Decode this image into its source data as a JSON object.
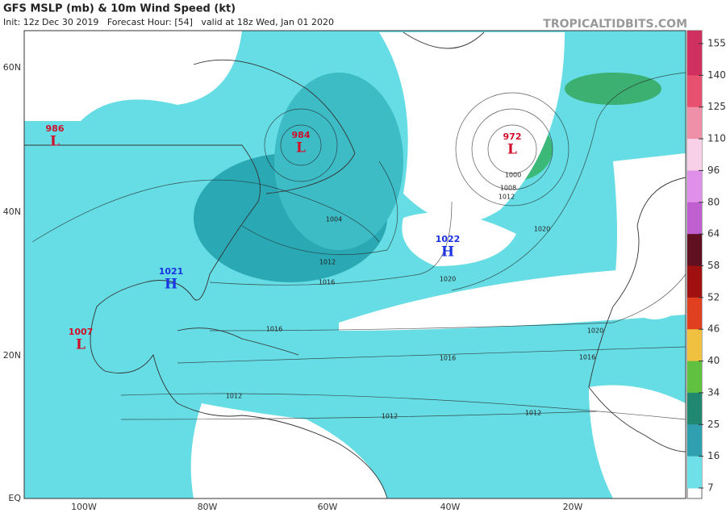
{
  "header": {
    "title": "GFS MSLP (mb) & 10m Wind Speed (kt)",
    "subtitle": "Init: 12z Dec 30 2019   Forecast Hour: [54]   valid at 18z Wed, Jan 01 2020",
    "site": "TROPICALTIDBITS.COM"
  },
  "map": {
    "latitude_labels": [
      "60N",
      "40N",
      "20N",
      "EQ"
    ],
    "longitude_labels": [
      "100W",
      "80W",
      "60W",
      "40W",
      "20W"
    ],
    "pressure_centers": [
      {
        "value": 986,
        "symbol": "L",
        "color": "#d0102a"
      },
      {
        "value": 984,
        "symbol": "L",
        "color": "#d0102a"
      },
      {
        "value": 972,
        "symbol": "L",
        "color": "#d0102a"
      },
      {
        "value": 1007,
        "symbol": "L",
        "color": "#d0102a"
      },
      {
        "value": 1021,
        "symbol": "H",
        "color": "#1a32e0"
      },
      {
        "value": 1022,
        "symbol": "H",
        "color": "#1a32e0"
      }
    ],
    "isobar_labels": [
      1004,
      1012,
      1016,
      1020,
      1016,
      1016,
      1012,
      1012,
      1012,
      1020,
      1000,
      1008,
      1012,
      1020,
      1016
    ]
  },
  "colorbar": {
    "labels": [
      155,
      140,
      125,
      110,
      96,
      80,
      64,
      58,
      52,
      46,
      40,
      34,
      25,
      16,
      7
    ],
    "colors": [
      "#d03060",
      "#e85070",
      "#f090a8",
      "#f8d0e8",
      "#e090e8",
      "#c060d0",
      "#601020",
      "#a01010",
      "#e04020",
      "#f0c040",
      "#60c040",
      "#208870",
      "#30a0b0",
      "#70e0e8"
    ]
  }
}
